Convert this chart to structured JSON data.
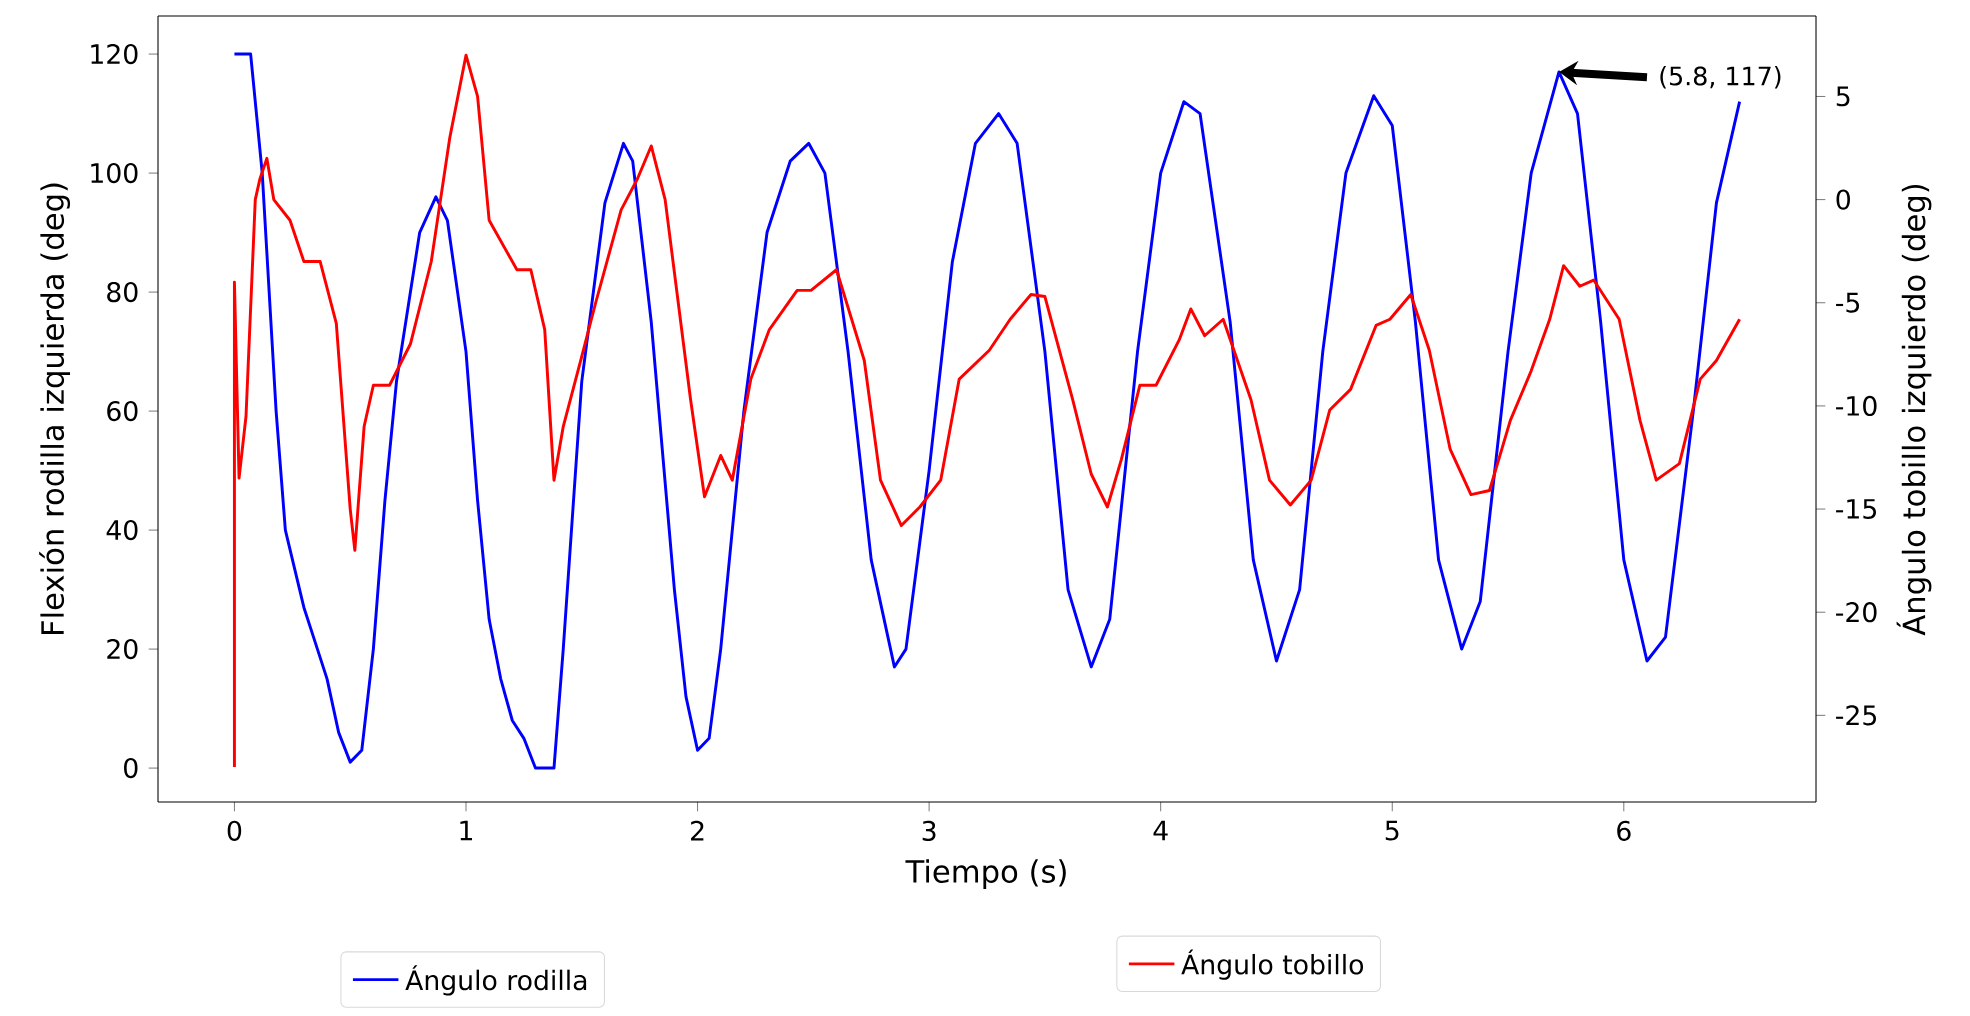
{
  "chart_data": {
    "type": "line",
    "xlabel": "Tiempo (s)",
    "ylabel": "Flexión rodilla izquierda (deg)",
    "y2label": "Ángulo tobillo izquierdo (deg)",
    "xlim": [
      -0.33,
      6.83
    ],
    "ylim": [
      -5.7,
      126.4
    ],
    "y2lim": [
      -29.2,
      8.9
    ],
    "xticks": [
      0,
      1,
      2,
      3,
      4,
      5,
      6
    ],
    "yticks": [
      0,
      20,
      40,
      60,
      80,
      100,
      120
    ],
    "y2ticks": [
      -25,
      -20,
      -15,
      -10,
      -5,
      0,
      5
    ],
    "legend": "bottom",
    "annotations": [
      {
        "text": "(5.8, 117)",
        "x": 5.72,
        "y": 117
      }
    ],
    "series": [
      {
        "name": "Ángulo rodilla",
        "color": "#0000ff",
        "x": [
          0,
          0.07,
          0.12,
          0.18,
          0.22,
          0.3,
          0.35,
          0.4,
          0.45,
          0.5,
          0.55,
          0.6,
          0.65,
          0.7,
          0.8,
          0.87,
          0.92,
          1.0,
          1.05,
          1.1,
          1.15,
          1.2,
          1.25,
          1.3,
          1.38,
          1.42,
          1.5,
          1.6,
          1.68,
          1.72,
          1.8,
          1.9,
          1.95,
          2.0,
          2.05,
          2.1,
          2.2,
          2.3,
          2.4,
          2.48,
          2.55,
          2.65,
          2.75,
          2.85,
          2.9,
          3.0,
          3.1,
          3.2,
          3.3,
          3.38,
          3.5,
          3.6,
          3.7,
          3.78,
          3.9,
          4.0,
          4.1,
          4.17,
          4.3,
          4.4,
          4.5,
          4.6,
          4.7,
          4.8,
          4.92,
          5.0,
          5.1,
          5.2,
          5.3,
          5.38,
          5.5,
          5.6,
          5.72,
          5.8,
          5.9,
          6.0,
          6.1,
          6.18,
          6.3,
          6.4,
          6.5
        ],
        "values": [
          120,
          120,
          100,
          60,
          40,
          27,
          21,
          15,
          6,
          1,
          3,
          20,
          45,
          65,
          90,
          96,
          92,
          70,
          45,
          25,
          15,
          8,
          5,
          0,
          0,
          20,
          65,
          95,
          105,
          102,
          75,
          30,
          12,
          3,
          5,
          20,
          60,
          90,
          102,
          105,
          100,
          70,
          35,
          17,
          20,
          50,
          85,
          105,
          110,
          105,
          70,
          30,
          17,
          25,
          70,
          100,
          112,
          110,
          75,
          35,
          18,
          30,
          70,
          100,
          113,
          108,
          75,
          35,
          20,
          28,
          70,
          100,
          117,
          110,
          75,
          35,
          18,
          22,
          60,
          95,
          112
        ]
      },
      {
        "name": "Ángulo tobillo",
        "color": "#ff0000",
        "axis": "y2",
        "x": [
          0,
          0,
          0.02,
          0.05,
          0.09,
          0.11,
          0.14,
          0.17,
          0.24,
          0.3,
          0.37,
          0.44,
          0.5,
          0.52,
          0.56,
          0.6,
          0.67,
          0.76,
          0.85,
          0.93,
          1.0,
          1.05,
          1.1,
          1.22,
          1.28,
          1.34,
          1.38,
          1.42,
          1.5,
          1.56,
          1.67,
          1.74,
          1.8,
          1.86,
          1.97,
          2.03,
          2.1,
          2.15,
          2.23,
          2.31,
          2.43,
          2.49,
          2.6,
          2.72,
          2.79,
          2.88,
          2.96,
          3.05,
          3.13,
          3.26,
          3.35,
          3.44,
          3.5,
          3.62,
          3.7,
          3.77,
          3.83,
          3.91,
          3.98,
          4.08,
          4.13,
          4.19,
          4.27,
          4.39,
          4.47,
          4.56,
          4.65,
          4.73,
          4.82,
          4.93,
          4.99,
          5.08,
          5.16,
          5.25,
          5.34,
          5.42,
          5.51,
          5.6,
          5.68,
          5.74,
          5.81,
          5.87,
          5.98,
          6.07,
          6.14,
          6.24,
          6.33,
          6.4,
          6.5
        ],
        "values": [
          -27.5,
          -4,
          -13.5,
          -10.5,
          0,
          1,
          2,
          0,
          -1,
          -3,
          -3,
          -6,
          -15,
          -17,
          -11,
          -9,
          -9,
          -7,
          -3,
          3,
          7,
          5,
          -1,
          -3.4,
          -3.4,
          -6.3,
          -13.6,
          -11,
          -7.6,
          -5,
          -0.5,
          1,
          2.6,
          0,
          -9.7,
          -14.4,
          -12.4,
          -13.6,
          -8.7,
          -6.3,
          -4.4,
          -4.4,
          -3.4,
          -7.8,
          -13.6,
          -15.8,
          -14.9,
          -13.6,
          -8.7,
          -7.3,
          -5.8,
          -4.6,
          -4.7,
          -9.7,
          -13.3,
          -14.9,
          -12.6,
          -9,
          -9,
          -6.8,
          -5.3,
          -6.6,
          -5.8,
          -9.7,
          -13.6,
          -14.8,
          -13.6,
          -10.2,
          -9.2,
          -6.1,
          -5.8,
          -4.6,
          -7.3,
          -12.1,
          -14.3,
          -14.1,
          -10.7,
          -8.3,
          -5.8,
          -3.2,
          -4.2,
          -3.9,
          -5.8,
          -10.7,
          -13.6,
          -12.8,
          -8.7,
          -7.8,
          -5.8
        ]
      }
    ]
  }
}
